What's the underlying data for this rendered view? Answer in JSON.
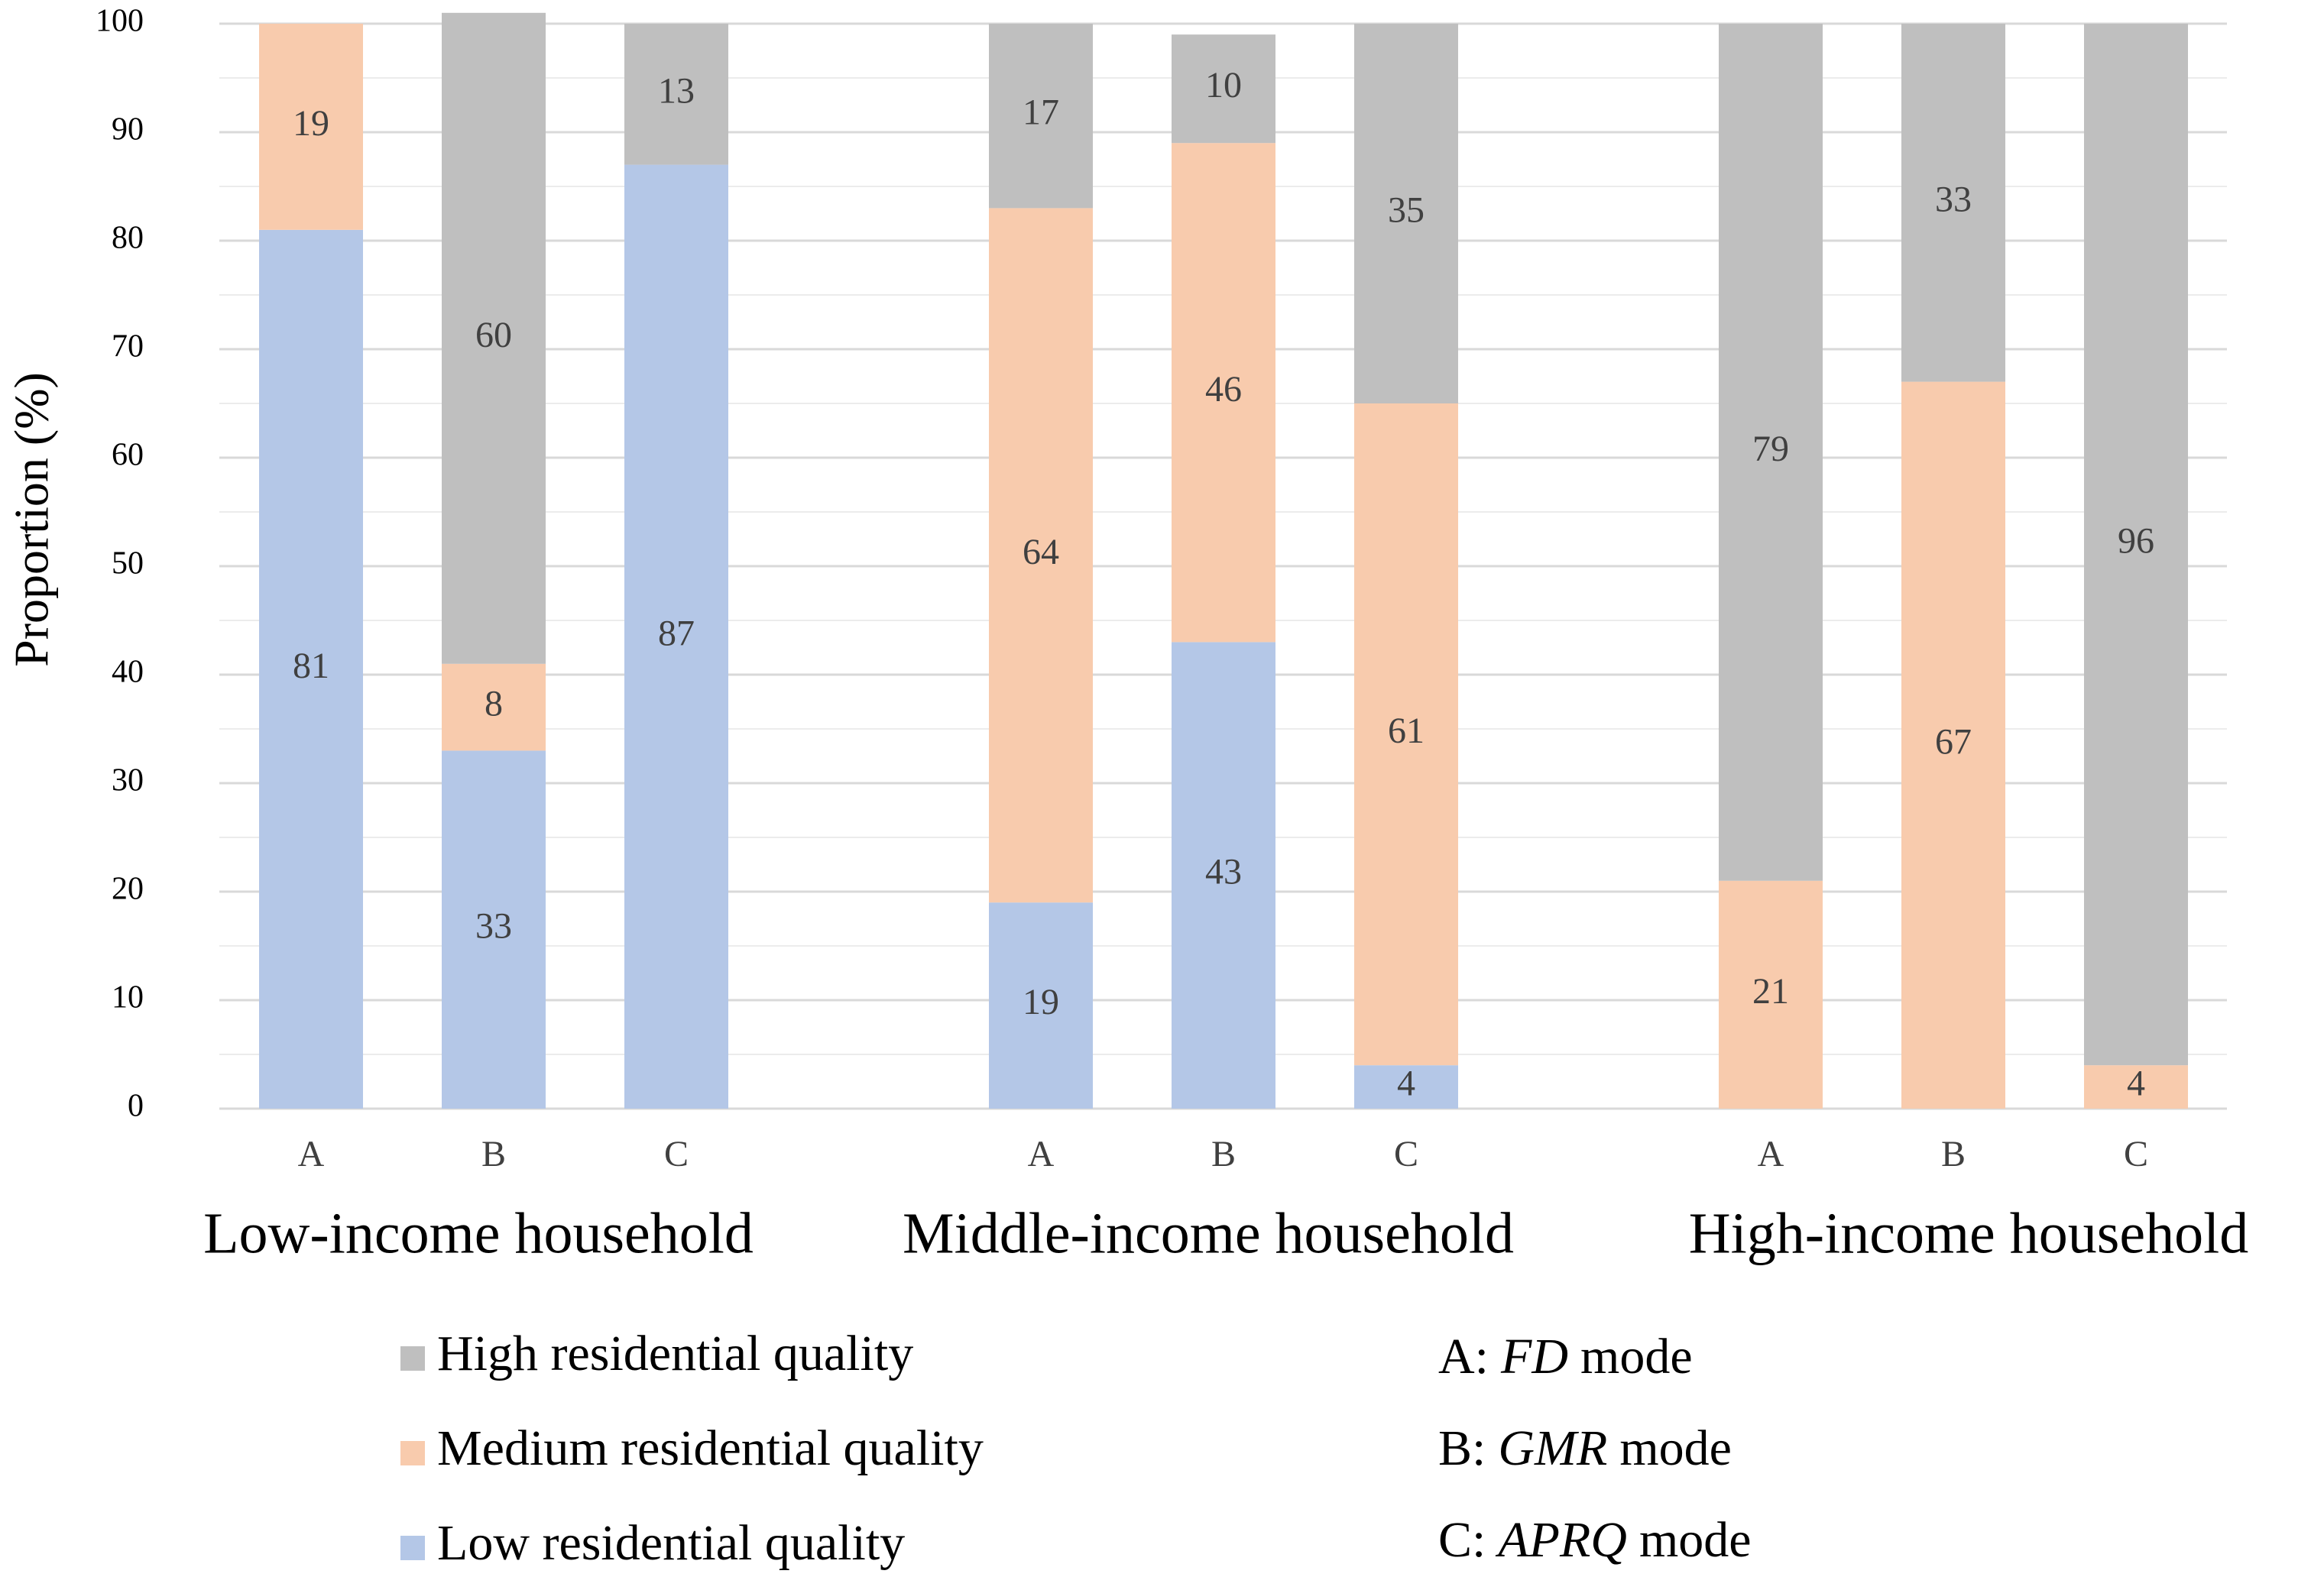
{
  "chart_data": {
    "type": "stacked-bar",
    "y_label": "Proportion (%)",
    "categories": [
      "A",
      "B",
      "C",
      "A",
      "B",
      "C",
      "A",
      "B",
      "C"
    ],
    "groups": [
      "Low-income household",
      "Middle-income household",
      "High-income household"
    ],
    "series": [
      {
        "name": "Low residential quality",
        "color": "#b4c7e7",
        "values": [
          81,
          33,
          87,
          19,
          43,
          4,
          null,
          null,
          null
        ]
      },
      {
        "name": "Medium residential quality",
        "color": "#f8cbad",
        "values": [
          19,
          8,
          null,
          64,
          46,
          61,
          21,
          67,
          4
        ]
      },
      {
        "name": "High residential quality",
        "color": "#bfbfbf",
        "values": [
          null,
          60,
          13,
          17,
          10,
          35,
          79,
          33,
          96
        ]
      }
    ],
    "ylim": [
      0,
      100
    ],
    "yticks": [
      0,
      10,
      20,
      30,
      40,
      50,
      60,
      70,
      80,
      90,
      100
    ],
    "minor_yticks": [
      5,
      15,
      25,
      35,
      45,
      55,
      65,
      75,
      85,
      95
    ],
    "grid": true,
    "notes": [
      {
        "key": "A:",
        "mode": "FD",
        "suffix": "mode"
      },
      {
        "key": "B:",
        "mode": "GMR",
        "suffix": "mode"
      },
      {
        "key": "C:",
        "mode": "APRQ",
        "suffix": "mode"
      }
    ]
  }
}
